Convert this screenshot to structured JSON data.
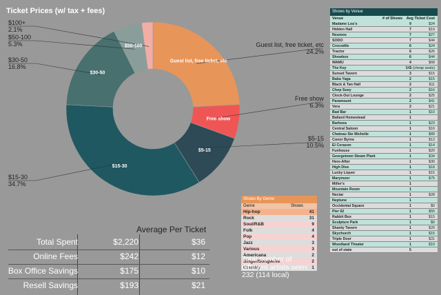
{
  "chart_data": {
    "type": "pie",
    "title": "Ticket Prices (w/ tax + fees)",
    "slices": [
      {
        "label": "Guest list, free ticket, etc",
        "value": 24.2,
        "display": "24.2%",
        "color": "#e8955a",
        "inner_label": "Guest list, free ticket, etc"
      },
      {
        "label": "Free show",
        "value": 6.3,
        "display": "6.3%",
        "color": "#f05555",
        "inner_label": "Free show"
      },
      {
        "label": "$5-15",
        "value": 10.5,
        "display": "10.5%",
        "color": "#2d4a56",
        "inner_label": "$5-15"
      },
      {
        "label": "$15-30",
        "value": 34.7,
        "display": "34.7%",
        "color": "#1f5861",
        "inner_label": "$15-30"
      },
      {
        "label": "$30-50",
        "value": 16.8,
        "display": "16.8%",
        "color": "#47706e",
        "inner_label": "$30-50"
      },
      {
        "label": "$50-100",
        "value": 5.3,
        "display": "5.3%",
        "color": "#899e9a",
        "inner_label": "$50-100"
      },
      {
        "label": "$100+",
        "value": 2.1,
        "display": "2.1%",
        "color": "#f2ada5",
        "inner_label": ""
      }
    ]
  },
  "avg_table": {
    "header": "Average Per Ticket",
    "rows": [
      {
        "label": "Total Spent",
        "total": "$2,220",
        "avg": "$36"
      },
      {
        "label": "Online Fees",
        "total": "$242",
        "avg": "$12"
      },
      {
        "label": "Box Office Savings",
        "total": "$175",
        "avg": "$10"
      },
      {
        "label": "Resell Savings",
        "total": "$193",
        "avg": "$21"
      }
    ]
  },
  "genres": {
    "title": "Shows By Genre",
    "col_genre": "Genre",
    "col_shows": "Shows",
    "rows": [
      {
        "name": "Hip-hop",
        "shows": "41"
      },
      {
        "name": "Rock",
        "shows": "31"
      },
      {
        "name": "Soul/R&B",
        "shows": "9"
      },
      {
        "name": "Folk",
        "shows": "4"
      },
      {
        "name": "Pop",
        "shows": "4"
      },
      {
        "name": "Jazz",
        "shows": "3"
      },
      {
        "name": "Various",
        "shows": "3"
      },
      {
        "name": "Americana",
        "shows": "2"
      },
      {
        "name": "Singer/Songwrite",
        "shows": "2"
      },
      {
        "name": "Country",
        "shows": "1"
      }
    ],
    "row_colors": [
      "#f4b28f",
      "#dddddd",
      "#f6d3d2",
      "#dddddd",
      "#f6d3d2",
      "#dddddd",
      "#f6d3d2",
      "#dddddd",
      "#f6d3d2",
      "#dddddd"
    ]
  },
  "totals_text": {
    "line1": "Total number of",
    "line2": "different artists seen:",
    "line3": "232 (114 local)"
  },
  "venues": {
    "title": "Shows by Venue",
    "col_venue": "Venue",
    "col_shows": "# of Shows",
    "col_cost": "Avg Ticket Cost",
    "rows": [
      {
        "name": "Madame Lou's",
        "shows": "9",
        "cost": "$24"
      },
      {
        "name": "Hidden Hall",
        "shows": "7",
        "cost": "$19"
      },
      {
        "name": "Neumos",
        "shows": "7",
        "cost": "$27"
      },
      {
        "name": "SODO",
        "shows": "7",
        "cost": "$44"
      },
      {
        "name": "Crocodile",
        "shows": "6",
        "cost": "$24"
      },
      {
        "name": "Tractor",
        "shows": "6",
        "cost": "$26"
      },
      {
        "name": "Showbox",
        "shows": "6",
        "cost": "$44"
      },
      {
        "name": "WAMU",
        "shows": "4",
        "cost": "$68"
      },
      {
        "name": "The Key",
        "shows": "3",
        "cost": "$41 (cheap seats)"
      },
      {
        "name": "Sunset Tavern",
        "shows": "3",
        "cost": "$15"
      },
      {
        "name": "Baba Yaga",
        "shows": "2",
        "cost": "$15"
      },
      {
        "name": "Black & Tan Hall",
        "shows": "2",
        "cost": "$11"
      },
      {
        "name": "Chop Suey",
        "shows": "2",
        "cost": "$16"
      },
      {
        "name": "Clock-Out Lounge",
        "shows": "2",
        "cost": "$25"
      },
      {
        "name": "Paramount",
        "shows": "2",
        "cost": "$41"
      },
      {
        "name": "Vera",
        "shows": "2",
        "cost": "$21"
      },
      {
        "name": "Bad Bar",
        "shows": "1",
        "cost": "$10"
      },
      {
        "name": "Ballard Homestead",
        "shows": "1",
        "cost": ""
      },
      {
        "name": "Barboza",
        "shows": "1",
        "cost": "$23"
      },
      {
        "name": "Central Saloon",
        "shows": "1",
        "cost": "$16"
      },
      {
        "name": "Chateau Ste Michelle",
        "shows": "1",
        "cost": "$89"
      },
      {
        "name": "Conor Byrne",
        "shows": "1",
        "cost": "$13"
      },
      {
        "name": "El Corazon",
        "shows": "1",
        "cost": "$14"
      },
      {
        "name": "Funhouse",
        "shows": "1",
        "cost": "$20"
      },
      {
        "name": "Georgetown Steam Plant",
        "shows": "1",
        "cost": "$34"
      },
      {
        "name": "Here-After",
        "shows": "1",
        "cost": "$30"
      },
      {
        "name": "High Dive",
        "shows": "1",
        "cost": "$18"
      },
      {
        "name": "Lucky Liquor",
        "shows": "1",
        "cost": "$15"
      },
      {
        "name": "Marymoor",
        "shows": "1",
        "cost": "$75"
      },
      {
        "name": "Miller's",
        "shows": "1",
        "cost": ""
      },
      {
        "name": "Mountain Room",
        "shows": "1",
        "cost": ""
      },
      {
        "name": "Nectar",
        "shows": "1",
        "cost": "$28"
      },
      {
        "name": "Neptune",
        "shows": "1",
        "cost": ""
      },
      {
        "name": "Occidental Square",
        "shows": "1",
        "cost": "$0"
      },
      {
        "name": "Pier 62",
        "shows": "1",
        "cost": "$55"
      },
      {
        "name": "Rabbit Box",
        "shows": "1",
        "cost": "$15"
      },
      {
        "name": "Sculpture Park",
        "shows": "1",
        "cost": "$0"
      },
      {
        "name": "Shanty Tavern",
        "shows": "1",
        "cost": "$20"
      },
      {
        "name": "Skychurch",
        "shows": "1",
        "cost": "$15"
      },
      {
        "name": "Triple Door",
        "shows": "1",
        "cost": "$31"
      },
      {
        "name": "Woodland Theater",
        "shows": "1",
        "cost": "$10"
      },
      {
        "name": "out of state",
        "shows": "5",
        "cost": ""
      }
    ],
    "row_colors": [
      "#bfe3da",
      "#dcdcdc"
    ]
  }
}
